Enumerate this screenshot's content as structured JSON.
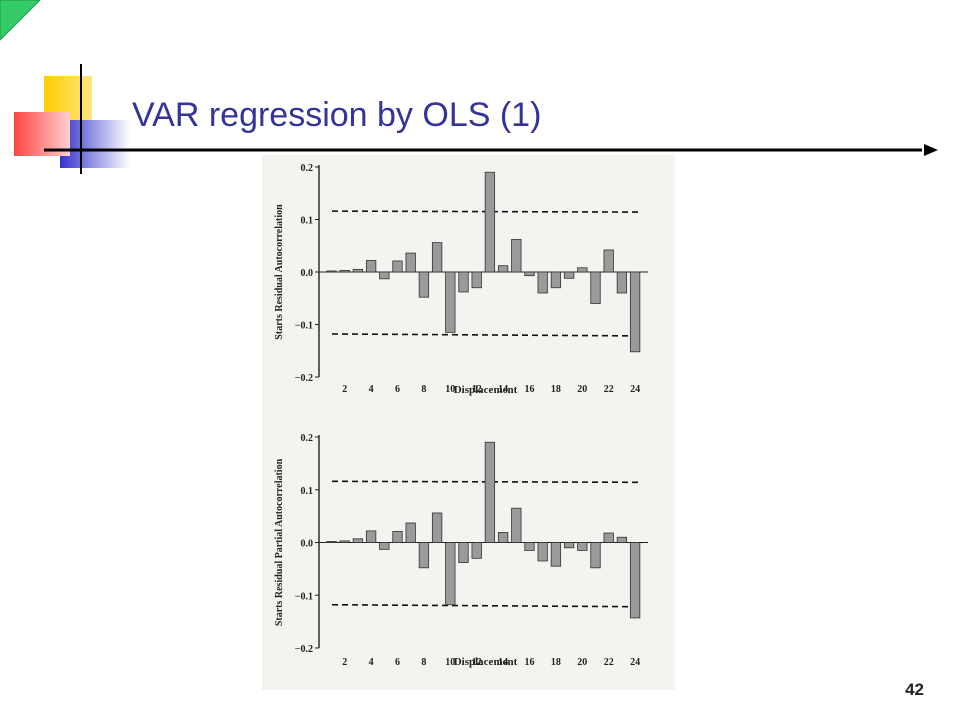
{
  "slide": {
    "title": "VAR regression by OLS (1)",
    "page_number": "42",
    "colors": {
      "title": "#33339a",
      "deco_yellow": "#ffcc00",
      "deco_blue": "#3333cc",
      "deco_red": "#ff5a5a",
      "corner_green": "#33cc66",
      "bar_fill": "#9a9a9a",
      "scan_background": "#f4f3ef"
    }
  },
  "chart_data": [
    {
      "type": "bar",
      "ylabel": "Starts Residual Autocorrelation",
      "xlabel": "Displacement",
      "x": [
        1,
        2,
        3,
        4,
        5,
        6,
        7,
        8,
        9,
        10,
        11,
        12,
        13,
        14,
        15,
        16,
        17,
        18,
        19,
        20,
        21,
        22,
        23,
        24
      ],
      "values": [
        0.002,
        0.003,
        0.005,
        0.022,
        -0.013,
        0.021,
        0.036,
        -0.048,
        0.056,
        -0.115,
        -0.038,
        -0.03,
        0.19,
        0.012,
        0.062,
        -0.007,
        -0.04,
        -0.03,
        -0.012,
        0.008,
        -0.06,
        0.042,
        -0.04,
        -0.152
      ],
      "xticks": [
        "2",
        "4",
        "6",
        "8",
        "10",
        "12",
        "14",
        "16",
        "18",
        "20",
        "22",
        "24"
      ],
      "yticks": [
        "0.2",
        "0.1",
        "0.0",
        "−0.1",
        "−0.2"
      ],
      "ylim": [
        -0.2,
        0.2
      ],
      "confidence_band": [
        -0.118,
        0.116
      ]
    },
    {
      "type": "bar",
      "ylabel": "Starts Residual Partial Autocorrelation",
      "xlabel": "Displacement",
      "x": [
        1,
        2,
        3,
        4,
        5,
        6,
        7,
        8,
        9,
        10,
        11,
        12,
        13,
        14,
        15,
        16,
        17,
        18,
        19,
        20,
        21,
        22,
        23,
        24
      ],
      "values": [
        0.002,
        0.003,
        0.007,
        0.022,
        -0.013,
        0.021,
        0.037,
        -0.048,
        0.056,
        -0.118,
        -0.038,
        -0.03,
        0.19,
        0.019,
        0.065,
        -0.015,
        -0.035,
        -0.045,
        -0.01,
        -0.015,
        -0.048,
        0.018,
        0.01,
        -0.143
      ],
      "xticks": [
        "2",
        "4",
        "6",
        "8",
        "10",
        "12",
        "14",
        "16",
        "18",
        "20",
        "22",
        "24"
      ],
      "yticks": [
        "0.2",
        "0.1",
        "0.0",
        "−0.1",
        "−0.2"
      ],
      "ylim": [
        -0.2,
        0.2
      ],
      "confidence_band": [
        -0.118,
        0.116
      ]
    }
  ]
}
